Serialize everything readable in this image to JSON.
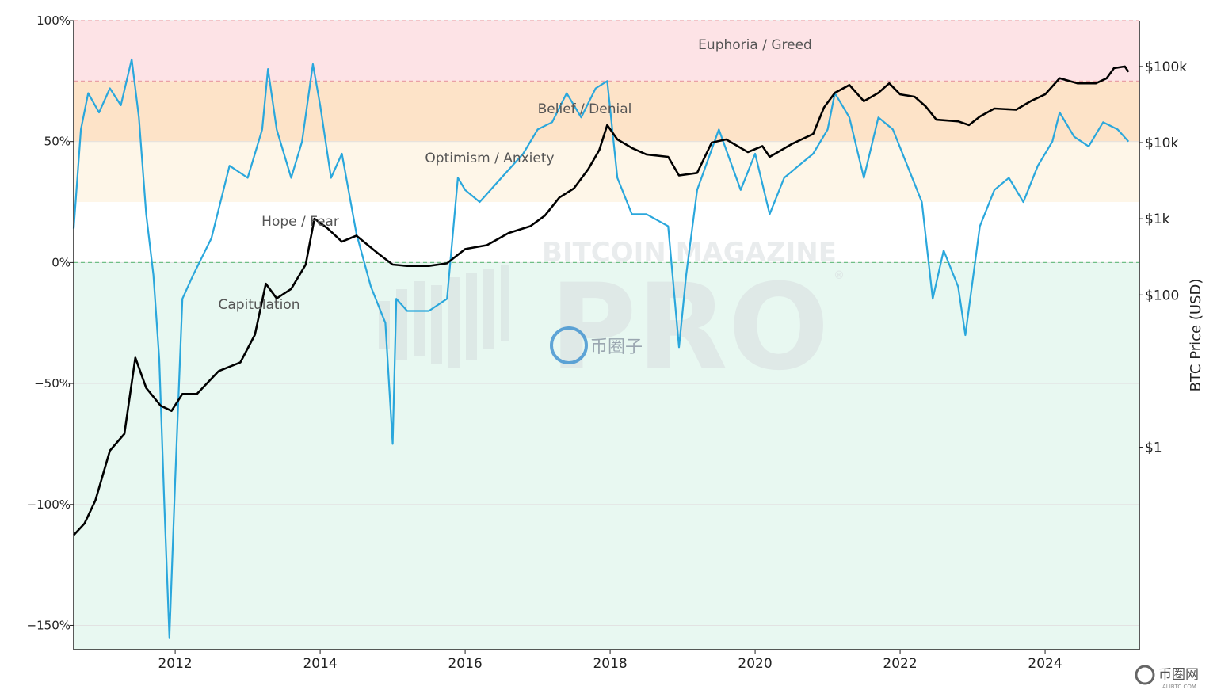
{
  "chart_data": {
    "type": "line",
    "title": "",
    "xlabel": "",
    "ylabel": "",
    "y2label": "BTC Price (USD)",
    "x_range": [
      2010.6,
      2025.3
    ],
    "y_range_percent": [
      -160,
      100
    ],
    "y2_scale": "log",
    "y2_range_usd": [
      0.0022,
      400000
    ],
    "grid": true,
    "legend": "none",
    "x_ticks": [
      {
        "value": 2012,
        "label": "2012"
      },
      {
        "value": 2014,
        "label": "2014"
      },
      {
        "value": 2016,
        "label": "2016"
      },
      {
        "value": 2018,
        "label": "2018"
      },
      {
        "value": 2020,
        "label": "2020"
      },
      {
        "value": 2022,
        "label": "2022"
      },
      {
        "value": 2024,
        "label": "2024"
      }
    ],
    "y_ticks": [
      {
        "value": 100,
        "label": "100%"
      },
      {
        "value": 50,
        "label": "50%"
      },
      {
        "value": 0,
        "label": "0%"
      },
      {
        "value": -50,
        "label": "−50%"
      },
      {
        "value": -100,
        "label": "−100%"
      },
      {
        "value": -150,
        "label": "−150%"
      }
    ],
    "y2_ticks": [
      {
        "value": 100000,
        "label": "$100k"
      },
      {
        "value": 10000,
        "label": "$10k"
      },
      {
        "value": 1000,
        "label": "$1k"
      },
      {
        "value": 100,
        "label": "$100"
      },
      {
        "value": 1,
        "label": "$1"
      }
    ],
    "zones": [
      {
        "name": "Euphoria / Greed",
        "from": 75,
        "to": 100,
        "color": "#fde3e6",
        "label_x": 2015.3,
        "label_y": 90
      },
      {
        "name": "Belief / Denial",
        "from": 50,
        "to": 75,
        "color": "#fde3c8",
        "label_x": 2017.9,
        "label_y": 64
      },
      {
        "name": "Optimism / Anxiety",
        "from": 25,
        "to": 50,
        "color": "#fef6e8",
        "label_x": 2017.9,
        "label_y": 43
      },
      {
        "name": "Hope / Fear",
        "from": 0,
        "to": 25,
        "color": "#ffffff",
        "label_x": 2012.95,
        "label_y": 17
      },
      {
        "name": "Capitulation",
        "from": -160,
        "to": 0,
        "color": "#e8f8f1",
        "label_x": 2012.2,
        "label_y": -17
      }
    ],
    "threshold_lines": [
      {
        "value": 100,
        "color": "#e9a0a6"
      },
      {
        "value": 75,
        "color": "#e9a0a6"
      },
      {
        "value": 0,
        "color": "#6fbf86"
      }
    ],
    "series": [
      {
        "name": "",
        "axis": "left",
        "color": "#2aa7dc",
        "x": [
          2010.6,
          2010.7,
          2010.8,
          2010.95,
          2011.1,
          2011.25,
          2011.4,
          2011.5,
          2011.6,
          2011.7,
          2011.78,
          2011.85,
          2011.92,
          2012.0,
          2012.1,
          2012.25,
          2012.5,
          2012.75,
          2013.0,
          2013.2,
          2013.28,
          2013.4,
          2013.6,
          2013.75,
          2013.9,
          2014.0,
          2014.15,
          2014.3,
          2014.5,
          2014.7,
          2014.9,
          2015.0,
          2015.05,
          2015.2,
          2015.5,
          2015.75,
          2015.9,
          2016.0,
          2016.2,
          2016.5,
          2016.8,
          2017.0,
          2017.2,
          2017.4,
          2017.6,
          2017.8,
          2017.96,
          2018.1,
          2018.3,
          2018.5,
          2018.8,
          2018.95,
          2019.05,
          2019.2,
          2019.5,
          2019.8,
          2020.0,
          2020.2,
          2020.4,
          2020.6,
          2020.8,
          2021.0,
          2021.1,
          2021.3,
          2021.5,
          2021.7,
          2021.9,
          2022.1,
          2022.3,
          2022.45,
          2022.6,
          2022.8,
          2022.9,
          2023.1,
          2023.3,
          2023.5,
          2023.7,
          2023.9,
          2024.1,
          2024.2,
          2024.4,
          2024.6,
          2024.8,
          2025.0,
          2025.15
        ],
        "y": [
          14,
          55,
          70,
          62,
          72,
          65,
          84,
          60,
          20,
          -5,
          -40,
          -100,
          -155,
          -90,
          -15,
          -5,
          10,
          40,
          35,
          55,
          80,
          55,
          35,
          50,
          82,
          65,
          35,
          45,
          12,
          -10,
          -25,
          -75,
          -15,
          -20,
          -20,
          -15,
          35,
          30,
          25,
          35,
          45,
          55,
          58,
          70,
          60,
          72,
          75,
          35,
          20,
          20,
          15,
          -35,
          -5,
          30,
          55,
          30,
          45,
          20,
          35,
          40,
          45,
          55,
          70,
          60,
          35,
          60,
          55,
          40,
          25,
          -15,
          5,
          -10,
          -30,
          15,
          30,
          35,
          25,
          40,
          50,
          62,
          52,
          48,
          58,
          55,
          50
        ]
      },
      {
        "name": "",
        "axis": "right",
        "color": "#000000",
        "x": [
          2010.6,
          2010.75,
          2010.9,
          2011.1,
          2011.3,
          2011.45,
          2011.6,
          2011.8,
          2011.95,
          2012.1,
          2012.3,
          2012.6,
          2012.9,
          2013.1,
          2013.25,
          2013.4,
          2013.6,
          2013.8,
          2013.92,
          2014.1,
          2014.3,
          2014.5,
          2014.8,
          2015.0,
          2015.2,
          2015.5,
          2015.75,
          2016.0,
          2016.3,
          2016.6,
          2016.9,
          2017.1,
          2017.3,
          2017.5,
          2017.7,
          2017.85,
          2017.96,
          2018.1,
          2018.3,
          2018.5,
          2018.8,
          2018.95,
          2019.2,
          2019.4,
          2019.6,
          2019.9,
          2020.1,
          2020.2,
          2020.5,
          2020.8,
          2020.95,
          2021.1,
          2021.3,
          2021.5,
          2021.7,
          2021.85,
          2022.0,
          2022.2,
          2022.35,
          2022.5,
          2022.8,
          2022.95,
          2023.1,
          2023.3,
          2023.6,
          2023.8,
          2024.0,
          2024.2,
          2024.45,
          2024.7,
          2024.85,
          2024.95,
          2025.1,
          2025.15
        ],
        "y": [
          0.07,
          0.1,
          0.2,
          0.9,
          1.5,
          15,
          6,
          3.5,
          3,
          5,
          5,
          10,
          13,
          30,
          140,
          90,
          120,
          250,
          1000,
          750,
          500,
          600,
          350,
          250,
          240,
          240,
          260,
          400,
          450,
          650,
          800,
          1100,
          1900,
          2500,
          4500,
          8000,
          17000,
          11000,
          8500,
          7000,
          6500,
          3700,
          4000,
          10000,
          11000,
          7500,
          9000,
          6500,
          9500,
          13000,
          29000,
          45000,
          57000,
          35000,
          45000,
          60000,
          43000,
          40000,
          30000,
          20000,
          19000,
          17000,
          22000,
          28000,
          27000,
          35000,
          43000,
          70000,
          60000,
          60000,
          70000,
          95000,
          100000,
          85000
        ]
      }
    ]
  },
  "watermark": {
    "line1": "BITCOIN MAGAZINE",
    "line2": "PRO",
    "registered": "®",
    "badge_text": "币圈子",
    "corner_text": "币圈网",
    "corner_sub": "ALIBTC.COM"
  }
}
